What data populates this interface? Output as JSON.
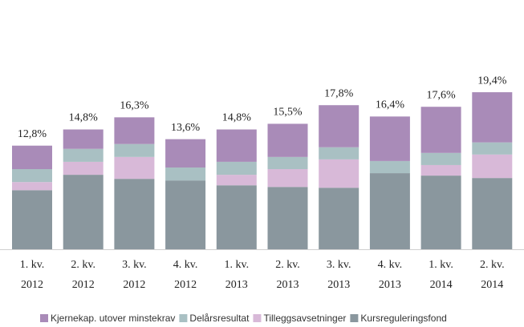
{
  "chart_data": {
    "type": "stacked_bar",
    "categories": [
      [
        "1. kv.",
        "2012"
      ],
      [
        "2. kv.",
        "2012"
      ],
      [
        "3. kv.",
        "2012"
      ],
      [
        "4. kv.",
        "2012"
      ],
      [
        "1. kv.",
        "2013"
      ],
      [
        "2. kv.",
        "2013"
      ],
      [
        "3. kv.",
        "2013"
      ],
      [
        "4. kv.",
        "2013"
      ],
      [
        "1. kv.",
        "2014"
      ],
      [
        "2. kv.",
        "2014"
      ]
    ],
    "series": [
      {
        "name": "Kjernekap. utover minstekrav",
        "color": "#a98bb8",
        "values": [
          2.9,
          2.4,
          3.3,
          3.5,
          4.0,
          4.1,
          5.2,
          5.5,
          5.7,
          6.2
        ]
      },
      {
        "name": "Delårsresultat",
        "color": "#a9c0c3",
        "values": [
          1.6,
          1.6,
          1.6,
          1.6,
          1.6,
          1.5,
          1.5,
          1.5,
          1.5,
          1.5
        ]
      },
      {
        "name": "Tilleggsavsetninger",
        "color": "#d8b9d8",
        "values": [
          1.0,
          1.6,
          2.7,
          0,
          1.3,
          2.2,
          3.5,
          0,
          1.3,
          2.9
        ]
      },
      {
        "name": "Kursreguleringsfond",
        "color": "#8a979e",
        "values": [
          7.3,
          9.2,
          8.7,
          8.5,
          7.9,
          7.7,
          7.6,
          9.4,
          9.1,
          8.8
        ]
      }
    ],
    "totals": {
      "values": [
        12.8,
        14.8,
        16.3,
        13.6,
        14.8,
        15.5,
        17.8,
        16.4,
        17.6,
        19.4
      ],
      "value_labels": [
        "12,8%",
        "14,8%",
        "16,3%",
        "13,6%",
        "14,8%",
        "15,5%",
        "17,8%",
        "16,4%",
        "17,6%",
        "19,4%"
      ]
    },
    "legend": "bottom"
  }
}
